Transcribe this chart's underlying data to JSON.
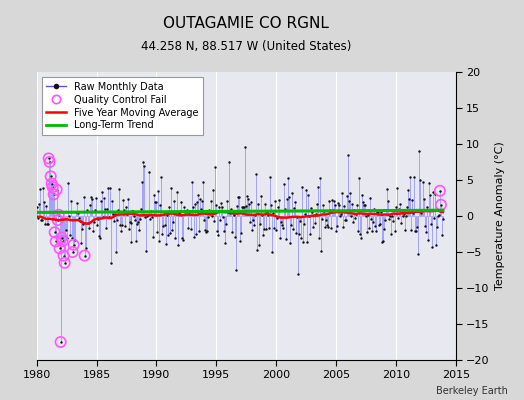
{
  "title": "OUTAGAMIE CO RGNL",
  "subtitle": "44.258 N, 88.517 W (United States)",
  "ylabel": "Temperature Anomaly (°C)",
  "credit": "Berkeley Earth",
  "xlim": [
    1980,
    2015
  ],
  "ylim": [
    -20,
    20
  ],
  "xticks": [
    1980,
    1985,
    1990,
    1995,
    2000,
    2005,
    2010,
    2015
  ],
  "yticks": [
    -20,
    -15,
    -10,
    -5,
    0,
    5,
    10,
    15,
    20
  ],
  "bg_color": "#d8d8d8",
  "plot_bg_color": "#e8e8f0",
  "grid_color": "#ffffff",
  "raw_line_color": "#5555ff",
  "raw_dot_color": "#111111",
  "qc_fail_color": "#ff55ff",
  "moving_avg_color": "#ff0000",
  "trend_color": "#00bb00",
  "seed": 42,
  "n_months": 408,
  "start_year": 1980.0,
  "noise_std": 2.5
}
